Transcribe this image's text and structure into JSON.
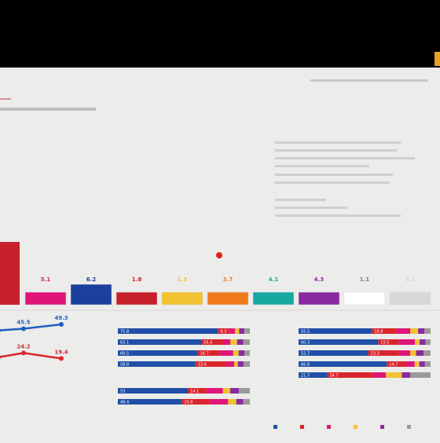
{
  "candidates": {
    "values": [
      5.1,
      6.2,
      1.8,
      1.3,
      3.7,
      4.1,
      4.3,
      1.1,
      3.1
    ],
    "colors": [
      "#e0157a",
      "#1c3f9e",
      "#c8202a",
      "#f2c230",
      "#f07a1a",
      "#16a9a0",
      "#8a2aa0",
      "#ffffff",
      "#d8d8d8"
    ]
  },
  "trend": {
    "series": [
      {
        "color": "#1f5fbf",
        "values": [
          44.0,
          45.5,
          49.3
        ]
      },
      {
        "color": "#d9262c",
        "values": [
          20.5,
          24.2,
          19.4
        ]
      }
    ]
  },
  "segment_colors": [
    "#1f4fa8",
    "#d9262c",
    "#e0157a",
    "#f2c230",
    "#8a2aa0",
    "#9a9a9a"
  ],
  "panel_left": {
    "rows": [
      [
        75.8,
        8.3,
        4.6,
        3.2,
        3.9,
        4.2
      ],
      [
        63.1,
        16.4,
        5.8,
        5.0,
        4.7,
        5.0
      ],
      [
        60.5,
        16.7,
        10.2,
        4.1,
        4.5,
        4.0
      ],
      [
        58.8,
        23.4,
        6.0,
        2.7,
        4.3,
        4.8
      ],
      [
        53.0,
        14.1,
        12.5,
        5.5,
        6.6,
        8.3
      ],
      [
        48.4,
        20.8,
        14.3,
        6.2,
        5.3,
        5.0
      ]
    ]
  },
  "panel_right": {
    "rows": [
      [
        55.5,
        18.8,
        10.4,
        5.9,
        4.8,
        4.6
      ],
      [
        60.3,
        15.5,
        12.4,
        3.5,
        4.6,
        3.7
      ],
      [
        52.7,
        23.3,
        8.6,
        4.4,
        5.8,
        5.2
      ],
      [
        66.8,
        14.7,
        6.5,
        3.5,
        4.2,
        4.3
      ],
      [
        21.7,
        34.7,
        9.8,
        12.0,
        6.5,
        15.3
      ]
    ]
  }
}
